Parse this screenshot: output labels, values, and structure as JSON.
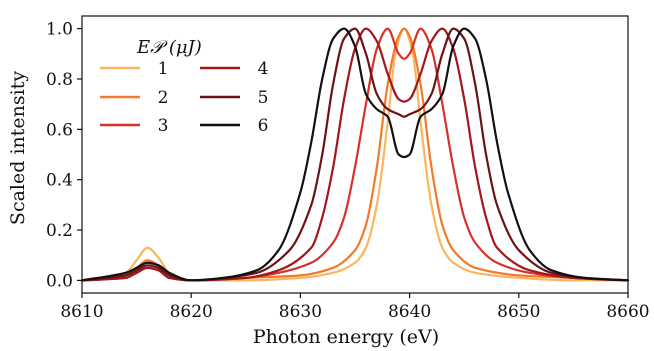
{
  "chart_data": {
    "type": "line",
    "xlabel": "Photon energy (eV)",
    "ylabel": "Scaled intensity",
    "xlim": [
      8610,
      8660
    ],
    "ylim": [
      -0.05,
      1.05
    ],
    "xticks": [
      8610,
      8620,
      8630,
      8640,
      8650,
      8660
    ],
    "yticks": [
      0.0,
      0.2,
      0.4,
      0.6,
      0.8,
      1.0
    ],
    "xtick_labels": [
      "8610",
      "8620",
      "8630",
      "8640",
      "8650",
      "8660"
    ],
    "ytick_labels": [
      "0.0",
      "0.2",
      "0.4",
      "0.6",
      "0.8",
      "1.0"
    ],
    "grid": false,
    "legend": {
      "title": "E𝒫 (μJ)",
      "placement": "top-left",
      "columns": 2
    },
    "series": [
      {
        "name": "1",
        "color": "#fbb55f",
        "x": [
          8610,
          8614,
          8615,
          8616,
          8617,
          8618,
          8620,
          8625,
          8630,
          8633,
          8635,
          8636,
          8637,
          8638,
          8638.7,
          8639.5,
          8640.3,
          8641,
          8642,
          8643,
          8644,
          8646,
          8650,
          8655,
          8660
        ],
        "y": [
          0.0,
          0.03,
          0.08,
          0.13,
          0.09,
          0.03,
          0.0,
          0.0,
          0.01,
          0.03,
          0.07,
          0.13,
          0.3,
          0.63,
          0.9,
          1.0,
          0.9,
          0.63,
          0.3,
          0.13,
          0.07,
          0.03,
          0.01,
          0.0,
          0.0
        ]
      },
      {
        "name": "2",
        "color": "#f37a2a",
        "x": [
          8610,
          8614,
          8615,
          8616,
          8617,
          8618,
          8620,
          8625,
          8630,
          8633,
          8635,
          8636,
          8637,
          8638,
          8639,
          8639.5,
          8640,
          8641,
          8642,
          8643,
          8644,
          8646,
          8650,
          8655,
          8660
        ],
        "y": [
          0.0,
          0.02,
          0.05,
          0.08,
          0.06,
          0.02,
          0.0,
          0.01,
          0.02,
          0.05,
          0.12,
          0.22,
          0.45,
          0.78,
          0.97,
          1.0,
          0.97,
          0.78,
          0.45,
          0.22,
          0.12,
          0.05,
          0.02,
          0.01,
          0.0
        ]
      },
      {
        "name": "3",
        "color": "#d8302a",
        "x": [
          8610,
          8614,
          8615,
          8616,
          8617,
          8618,
          8620,
          8625,
          8628,
          8631,
          8633,
          8634,
          8635,
          8636,
          8637,
          8638,
          8639,
          8639.5,
          8640,
          8641,
          8642,
          8643,
          8644,
          8645,
          8646,
          8648,
          8651,
          8655,
          8660
        ],
        "y": [
          0.0,
          0.01,
          0.03,
          0.05,
          0.04,
          0.01,
          0.0,
          0.01,
          0.03,
          0.07,
          0.15,
          0.25,
          0.45,
          0.7,
          0.92,
          1.0,
          0.9,
          0.88,
          0.9,
          1.0,
          0.92,
          0.7,
          0.45,
          0.25,
          0.15,
          0.07,
          0.03,
          0.01,
          0.0
        ]
      },
      {
        "name": "4",
        "color": "#a3161a",
        "x": [
          8610,
          8614,
          8615,
          8616,
          8617,
          8618,
          8620,
          8625,
          8628,
          8631,
          8632,
          8633,
          8634,
          8635,
          8636,
          8637,
          8638,
          8639,
          8639.5,
          8640,
          8641,
          8642,
          8643,
          8644,
          8645,
          8646,
          8647,
          8648,
          8651,
          8655,
          8660
        ],
        "y": [
          0.0,
          0.01,
          0.03,
          0.05,
          0.04,
          0.01,
          0.0,
          0.01,
          0.04,
          0.13,
          0.25,
          0.45,
          0.72,
          0.92,
          1.0,
          0.95,
          0.82,
          0.72,
          0.71,
          0.72,
          0.82,
          0.95,
          1.0,
          0.92,
          0.72,
          0.45,
          0.25,
          0.13,
          0.04,
          0.01,
          0.0
        ]
      },
      {
        "name": "5",
        "color": "#6b1418",
        "x": [
          8610,
          8614,
          8615,
          8616,
          8617,
          8618,
          8620,
          8623,
          8626,
          8629,
          8631,
          8632,
          8633,
          8634,
          8635,
          8636,
          8637,
          8638,
          8639,
          8639.5,
          8640,
          8641,
          8642,
          8643,
          8644,
          8645,
          8646,
          8647,
          8648,
          8650,
          8653,
          8656,
          8660
        ],
        "y": [
          0.0,
          0.02,
          0.04,
          0.06,
          0.05,
          0.02,
          0.0,
          0.01,
          0.03,
          0.12,
          0.3,
          0.5,
          0.78,
          0.96,
          1.0,
          0.9,
          0.74,
          0.68,
          0.66,
          0.65,
          0.66,
          0.68,
          0.74,
          0.9,
          1.0,
          0.96,
          0.78,
          0.5,
          0.3,
          0.12,
          0.03,
          0.01,
          0.0
        ]
      },
      {
        "name": "6",
        "color": "#111111",
        "x": [
          8610,
          8614,
          8615,
          8616,
          8617,
          8618,
          8620,
          8623,
          8626,
          8628,
          8630,
          8631,
          8632,
          8633,
          8634,
          8635,
          8636,
          8637,
          8638,
          8639,
          8639.5,
          8640,
          8641,
          8642,
          8643,
          8644,
          8645,
          8646,
          8647,
          8648,
          8649,
          8651,
          8653,
          8656,
          8660
        ],
        "y": [
          0.0,
          0.03,
          0.05,
          0.07,
          0.06,
          0.03,
          0.0,
          0.01,
          0.04,
          0.12,
          0.35,
          0.55,
          0.8,
          0.96,
          1.0,
          0.93,
          0.74,
          0.68,
          0.65,
          0.5,
          0.49,
          0.5,
          0.65,
          0.68,
          0.74,
          0.93,
          1.0,
          0.96,
          0.8,
          0.55,
          0.35,
          0.12,
          0.04,
          0.01,
          0.0
        ]
      }
    ]
  }
}
